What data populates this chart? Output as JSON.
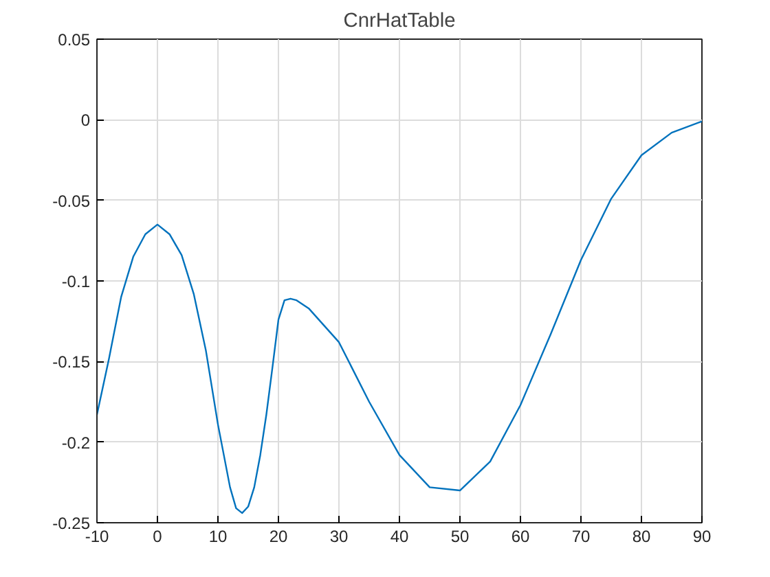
{
  "chart_data": {
    "type": "line",
    "title": "CnrHatTable",
    "x": [
      -10,
      -8,
      -6,
      -4,
      -2,
      0,
      2,
      4,
      6,
      8,
      10,
      12,
      13,
      14,
      15,
      16,
      17,
      18,
      19,
      20,
      21,
      22,
      23,
      25,
      30,
      35,
      40,
      45,
      50,
      55,
      60,
      65,
      70,
      75,
      80,
      85,
      90
    ],
    "series": [
      {
        "color": "#0072bd",
        "values": [
          -0.183,
          -0.148,
          -0.11,
          -0.085,
          -0.071,
          -0.065,
          -0.071,
          -0.084,
          -0.108,
          -0.143,
          -0.189,
          -0.228,
          -0.241,
          -0.244,
          -0.24,
          -0.228,
          -0.208,
          -0.183,
          -0.154,
          -0.124,
          -0.112,
          -0.111,
          -0.112,
          -0.117,
          -0.138,
          -0.175,
          -0.208,
          -0.228,
          -0.23,
          -0.212,
          -0.177,
          -0.133,
          -0.087,
          -0.049,
          -0.022,
          -0.008,
          -0.001
        ]
      }
    ],
    "xlim": [
      -10,
      90
    ],
    "ylim": [
      -0.25,
      0.05
    ],
    "xticks": [
      -10,
      0,
      10,
      20,
      30,
      40,
      50,
      60,
      70,
      80,
      90
    ],
    "yticks": [
      -0.25,
      -0.2,
      -0.15,
      -0.1,
      -0.05,
      0,
      0.05
    ],
    "grid": true
  }
}
